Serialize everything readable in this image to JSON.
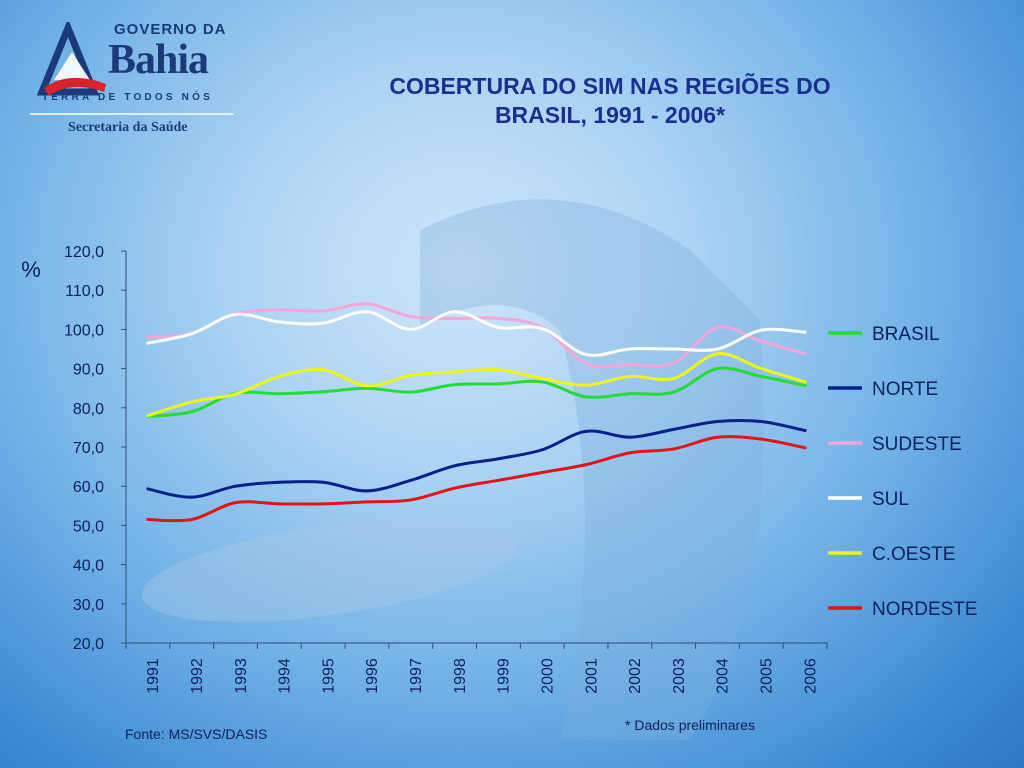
{
  "logo": {
    "line1": "GOVERNO DA",
    "line2": "Bahia",
    "tagline": "TERRA DE TODOS NÓS",
    "department": "Secretaria da Saúde"
  },
  "page": {
    "title_line1": "COBERTURA DO SIM NAS REGIÕES DO",
    "title_line2": "BRASIL, 1991 - 2006*",
    "source": "Fonte: MS/SVS/DASIS",
    "footnote": "* Dados preliminares"
  },
  "colors": {
    "text": "#10205a",
    "title": "#1a2f8f",
    "axis": "#3a4a7a"
  },
  "chart_data": {
    "type": "line",
    "title": "COBERTURA DO SIM NAS REGIÕES DO BRASIL, 1991 - 2006*",
    "ylabel": "%",
    "xlabel": "",
    "ylim": [
      20,
      120
    ],
    "yticks": [
      "20,0",
      "30,0",
      "40,0",
      "50,0",
      "60,0",
      "70,0",
      "80,0",
      "90,0",
      "100,0",
      "110,0",
      "120,0"
    ],
    "categories": [
      "1991",
      "1992",
      "1993",
      "1994",
      "1995",
      "1996",
      "1997",
      "1998",
      "1999",
      "2000",
      "2001",
      "2002",
      "2003",
      "2004",
      "2005",
      "2006"
    ],
    "legend_position": "right",
    "grid": false,
    "series": [
      {
        "name": "BRASIL",
        "color": "#22dd33",
        "values": [
          77.8,
          79.0,
          83.7,
          83.6,
          84.1,
          85.0,
          84.0,
          85.9,
          86.1,
          86.6,
          82.8,
          83.6,
          84.0,
          90.0,
          88.0,
          85.7
        ]
      },
      {
        "name": "NORTE",
        "color": "#0b1f8c",
        "values": [
          59.3,
          57.2,
          60.0,
          61.0,
          61.0,
          58.8,
          61.5,
          65.2,
          67.0,
          69.3,
          74.0,
          72.5,
          74.5,
          76.5,
          76.5,
          74.2
        ]
      },
      {
        "name": "SUDESTE",
        "color": "#f5a6d8",
        "values": [
          98.0,
          99.0,
          104.0,
          105.0,
          104.7,
          106.5,
          103.3,
          102.8,
          102.8,
          100.5,
          91.3,
          91.0,
          91.5,
          100.5,
          97.0,
          93.8
        ]
      },
      {
        "name": "SUL",
        "color": "#ffffff",
        "values": [
          96.5,
          98.9,
          103.8,
          101.9,
          101.6,
          104.5,
          100.0,
          104.5,
          100.5,
          100.2,
          93.6,
          95.0,
          95.0,
          95.0,
          99.8,
          99.3
        ]
      },
      {
        "name": "C.OESTE",
        "color": "#eef51a",
        "values": [
          78.0,
          81.5,
          83.5,
          88.0,
          89.7,
          85.6,
          88.3,
          89.2,
          89.7,
          87.5,
          85.8,
          88.0,
          87.5,
          93.8,
          90.0,
          86.6
        ]
      },
      {
        "name": "NORDESTE",
        "color": "#e01616",
        "values": [
          51.5,
          51.5,
          55.8,
          55.5,
          55.5,
          56.0,
          56.5,
          59.5,
          61.5,
          63.5,
          65.5,
          68.5,
          69.5,
          72.5,
          72.0,
          69.8
        ]
      }
    ]
  }
}
